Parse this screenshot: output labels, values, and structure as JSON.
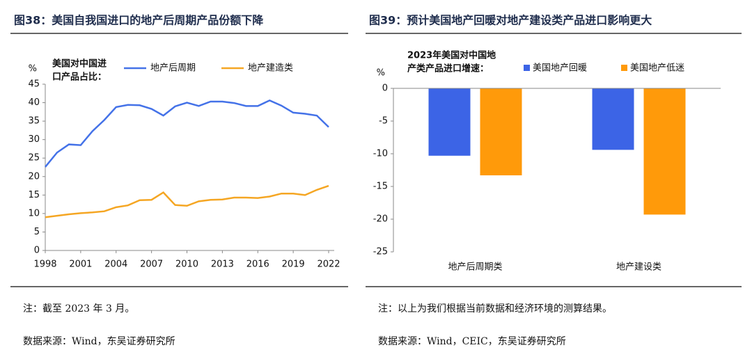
{
  "chart_data": [
    {
      "type": "line",
      "title": "图38：美国自我国进口的地产后周期产品份额下降",
      "y_label": "%",
      "legend_title": [
        "美国对中国进",
        "口产品占比："
      ],
      "x": [
        1998,
        1999,
        2000,
        2001,
        2002,
        2003,
        2004,
        2005,
        2006,
        2007,
        2008,
        2009,
        2010,
        2011,
        2012,
        2013,
        2014,
        2015,
        2016,
        2017,
        2018,
        2019,
        2020,
        2021,
        2022
      ],
      "series": [
        {
          "name": "地产后周期",
          "color": "#4472e8",
          "values": [
            22.6,
            26.5,
            28.7,
            28.5,
            32.3,
            35.3,
            38.8,
            39.4,
            39.3,
            38.3,
            36.5,
            39.0,
            40.0,
            39.1,
            40.3,
            40.3,
            39.9,
            39.1,
            39.1,
            40.6,
            39.2,
            37.3,
            37.0,
            36.5,
            33.4
          ]
        },
        {
          "name": "地产建造类",
          "color": "#f5a623",
          "values": [
            9.0,
            9.4,
            9.8,
            10.1,
            10.3,
            10.6,
            11.7,
            12.2,
            13.6,
            13.7,
            15.7,
            12.3,
            12.1,
            13.3,
            13.7,
            13.8,
            14.3,
            14.3,
            14.2,
            14.6,
            15.4,
            15.4,
            15.0,
            16.4,
            17.5
          ]
        }
      ],
      "xlim": [
        1998,
        2022
      ],
      "xticks": [
        1998,
        2001,
        2004,
        2007,
        2010,
        2013,
        2016,
        2019,
        2022
      ],
      "ylim": [
        0,
        45
      ],
      "yticks": [
        0,
        5,
        10,
        15,
        20,
        25,
        30,
        35,
        40,
        45
      ],
      "note": "注：截至 2023 年 3 月。",
      "source": "数据来源：Wind，东吴证券研究所"
    },
    {
      "type": "bar",
      "title": "图39：预计美国地产回暖对地产建设类产品进口影响更大",
      "y_label": "%",
      "legend_title": [
        "2023年美国对中国地",
        "产类产品进口增速："
      ],
      "categories": [
        "地产后周期类",
        "地产建设类"
      ],
      "series": [
        {
          "name": "美国地产回暖",
          "color": "#3c64e6",
          "values": [
            -10.3,
            -9.4
          ]
        },
        {
          "name": "美国地产低迷",
          "color": "#ff9a0a",
          "values": [
            -13.3,
            -19.3
          ]
        }
      ],
      "ylim": [
        -25,
        0
      ],
      "yticks": [
        0,
        -5,
        -10,
        -15,
        -20,
        -25
      ],
      "note": "注：以上为我们根据当前数据和经济环境的测算结果。",
      "source": "数据来源：Wind，CEIC，东吴证券研究所"
    }
  ]
}
